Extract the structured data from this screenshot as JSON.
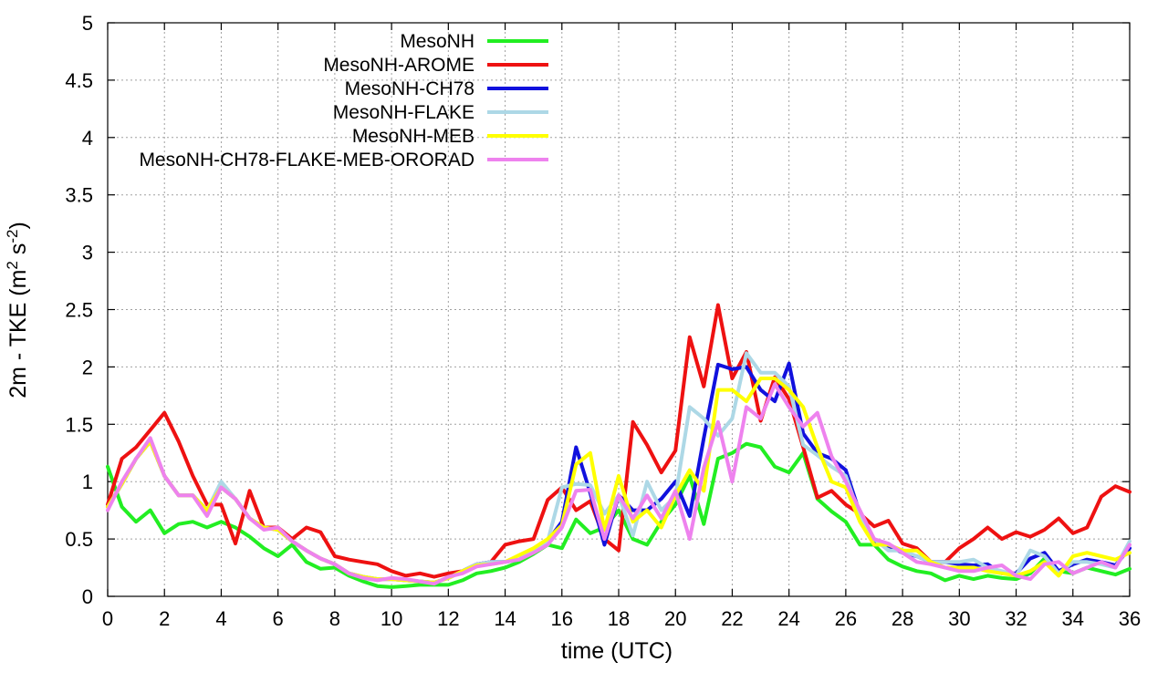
{
  "chart_data": {
    "type": "line",
    "xlabel": "time (UTC)",
    "ylabel": "2m - TKE (m² s⁻²)",
    "ylabel_parts": {
      "pre": "2m - TKE (m",
      "sup1": "2",
      "mid": " s",
      "sup2": "-2",
      "post": ")"
    },
    "xlim": [
      0,
      36
    ],
    "ylim": [
      0,
      5
    ],
    "xticks": [
      0,
      2,
      4,
      6,
      8,
      10,
      12,
      14,
      16,
      18,
      20,
      22,
      24,
      26,
      28,
      30,
      32,
      34,
      36
    ],
    "yticks": [
      0,
      0.5,
      1,
      1.5,
      2,
      2.5,
      3,
      3.5,
      4,
      4.5,
      5
    ],
    "ytick_labels": [
      "0",
      "0.5",
      "1",
      "1.5",
      "2",
      "2.5",
      "3",
      "3.5",
      "4",
      "4.5",
      "5"
    ],
    "grid": true,
    "legend_position": "top-left",
    "x": [
      0,
      0.5,
      1,
      1.5,
      2,
      2.5,
      3,
      3.5,
      4,
      4.5,
      5,
      5.5,
      6,
      6.5,
      7,
      7.5,
      8,
      8.5,
      9,
      9.5,
      10,
      10.5,
      11,
      11.5,
      12,
      12.5,
      13,
      13.5,
      14,
      14.5,
      15,
      15.5,
      16,
      16.5,
      17,
      17.5,
      18,
      18.5,
      19,
      19.5,
      20,
      20.5,
      21,
      21.5,
      22,
      22.5,
      23,
      23.5,
      24,
      24.5,
      25,
      25.5,
      26,
      26.5,
      27,
      27.5,
      28,
      28.5,
      29,
      29.5,
      30,
      30.5,
      31,
      31.5,
      32,
      32.5,
      33,
      33.5,
      34,
      34.5,
      35,
      35.5,
      36
    ],
    "series": [
      {
        "name": "MesoNH",
        "color": "#22ee22",
        "values": [
          1.13,
          0.78,
          0.65,
          0.75,
          0.55,
          0.63,
          0.65,
          0.6,
          0.65,
          0.6,
          0.52,
          0.42,
          0.35,
          0.45,
          0.3,
          0.24,
          0.25,
          0.18,
          0.13,
          0.09,
          0.08,
          0.09,
          0.1,
          0.1,
          0.1,
          0.14,
          0.2,
          0.22,
          0.25,
          0.3,
          0.37,
          0.45,
          0.42,
          0.67,
          0.55,
          0.6,
          0.75,
          0.5,
          0.45,
          0.65,
          0.8,
          1.05,
          0.63,
          1.2,
          1.25,
          1.33,
          1.3,
          1.13,
          1.08,
          1.25,
          0.85,
          0.74,
          0.65,
          0.45,
          0.45,
          0.32,
          0.26,
          0.22,
          0.2,
          0.14,
          0.18,
          0.15,
          0.18,
          0.16,
          0.15,
          0.2,
          0.33,
          0.22,
          0.2,
          0.25,
          0.22,
          0.19,
          0.24
        ]
      },
      {
        "name": "MesoNH-AROME",
        "color": "#ee1111",
        "values": [
          0.8,
          1.2,
          1.3,
          1.45,
          1.6,
          1.35,
          1.05,
          0.8,
          0.8,
          0.46,
          0.92,
          0.6,
          0.6,
          0.5,
          0.6,
          0.56,
          0.35,
          0.32,
          0.3,
          0.28,
          0.22,
          0.18,
          0.2,
          0.17,
          0.2,
          0.22,
          0.28,
          0.3,
          0.45,
          0.48,
          0.5,
          0.84,
          0.95,
          0.75,
          0.83,
          0.5,
          0.4,
          1.52,
          1.32,
          1.08,
          1.27,
          2.26,
          1.83,
          2.54,
          1.9,
          2.13,
          1.53,
          1.91,
          1.72,
          1.3,
          0.86,
          0.92,
          0.8,
          0.72,
          0.61,
          0.66,
          0.46,
          0.42,
          0.3,
          0.3,
          0.42,
          0.5,
          0.6,
          0.5,
          0.56,
          0.52,
          0.58,
          0.68,
          0.55,
          0.6,
          0.87,
          0.96,
          0.91
        ]
      },
      {
        "name": "MesoNH-CH78",
        "color": "#1111dd",
        "values": [
          0.78,
          0.98,
          1.2,
          1.35,
          1.05,
          0.88,
          0.88,
          0.75,
          0.95,
          0.85,
          0.68,
          0.6,
          0.58,
          0.48,
          0.4,
          0.33,
          0.28,
          0.2,
          0.17,
          0.15,
          0.15,
          0.14,
          0.13,
          0.12,
          0.16,
          0.22,
          0.28,
          0.3,
          0.3,
          0.32,
          0.4,
          0.48,
          0.65,
          1.3,
          0.9,
          0.45,
          0.88,
          0.75,
          0.75,
          0.85,
          1.0,
          0.7,
          1.38,
          2.02,
          1.98,
          2.0,
          1.8,
          1.7,
          2.03,
          1.42,
          1.25,
          1.2,
          1.1,
          0.72,
          0.47,
          0.44,
          0.38,
          0.35,
          0.3,
          0.3,
          0.28,
          0.27,
          0.28,
          0.2,
          0.2,
          0.33,
          0.38,
          0.22,
          0.28,
          0.32,
          0.3,
          0.27,
          0.42
        ]
      },
      {
        "name": "MesoNH-FLAKE",
        "color": "#add8e6",
        "values": [
          0.78,
          0.98,
          1.2,
          1.35,
          1.05,
          0.88,
          0.88,
          0.75,
          1.0,
          0.85,
          0.68,
          0.6,
          0.58,
          0.48,
          0.4,
          0.33,
          0.28,
          0.2,
          0.17,
          0.15,
          0.15,
          0.14,
          0.13,
          0.12,
          0.16,
          0.22,
          0.28,
          0.3,
          0.3,
          0.32,
          0.4,
          0.48,
          0.95,
          0.98,
          0.97,
          0.72,
          0.88,
          0.53,
          1.0,
          0.75,
          0.87,
          1.65,
          1.55,
          1.4,
          1.55,
          2.12,
          1.95,
          1.95,
          1.83,
          1.32,
          1.23,
          1.13,
          1.05,
          0.7,
          0.5,
          0.4,
          0.4,
          0.35,
          0.3,
          0.3,
          0.3,
          0.32,
          0.25,
          0.22,
          0.18,
          0.4,
          0.35,
          0.2,
          0.3,
          0.3,
          0.28,
          0.25,
          0.48
        ]
      },
      {
        "name": "MesoNH-MEB",
        "color": "#ffff00",
        "values": [
          0.78,
          0.98,
          1.2,
          1.35,
          1.05,
          0.88,
          0.88,
          0.75,
          0.95,
          0.85,
          0.68,
          0.6,
          0.58,
          0.48,
          0.4,
          0.33,
          0.28,
          0.2,
          0.17,
          0.15,
          0.15,
          0.14,
          0.13,
          0.12,
          0.16,
          0.22,
          0.27,
          0.28,
          0.3,
          0.36,
          0.42,
          0.5,
          0.62,
          1.15,
          1.25,
          0.58,
          1.05,
          0.65,
          0.75,
          0.6,
          0.88,
          1.1,
          0.92,
          1.8,
          1.8,
          1.7,
          1.9,
          1.9,
          1.8,
          1.65,
          1.3,
          1.0,
          0.95,
          0.65,
          0.45,
          0.45,
          0.4,
          0.4,
          0.3,
          0.25,
          0.25,
          0.25,
          0.22,
          0.2,
          0.18,
          0.22,
          0.3,
          0.18,
          0.35,
          0.38,
          0.35,
          0.32,
          0.38
        ]
      },
      {
        "name": "MesoNH-CH78-FLAKE-MEB-ORORAD",
        "color": "#ee82ee",
        "values": [
          0.75,
          1.0,
          1.2,
          1.38,
          1.05,
          0.88,
          0.88,
          0.7,
          0.95,
          0.85,
          0.68,
          0.58,
          0.6,
          0.48,
          0.4,
          0.33,
          0.28,
          0.2,
          0.16,
          0.14,
          0.16,
          0.15,
          0.13,
          0.11,
          0.17,
          0.2,
          0.26,
          0.28,
          0.3,
          0.32,
          0.38,
          0.45,
          0.6,
          0.92,
          0.93,
          0.5,
          0.88,
          0.68,
          0.88,
          0.68,
          0.92,
          0.5,
          1.12,
          1.52,
          1.0,
          1.65,
          1.55,
          1.85,
          1.65,
          1.48,
          1.6,
          1.22,
          1.0,
          0.75,
          0.5,
          0.46,
          0.38,
          0.3,
          0.28,
          0.25,
          0.22,
          0.22,
          0.25,
          0.27,
          0.18,
          0.15,
          0.28,
          0.3,
          0.2,
          0.25,
          0.3,
          0.25,
          0.45
        ]
      }
    ]
  }
}
